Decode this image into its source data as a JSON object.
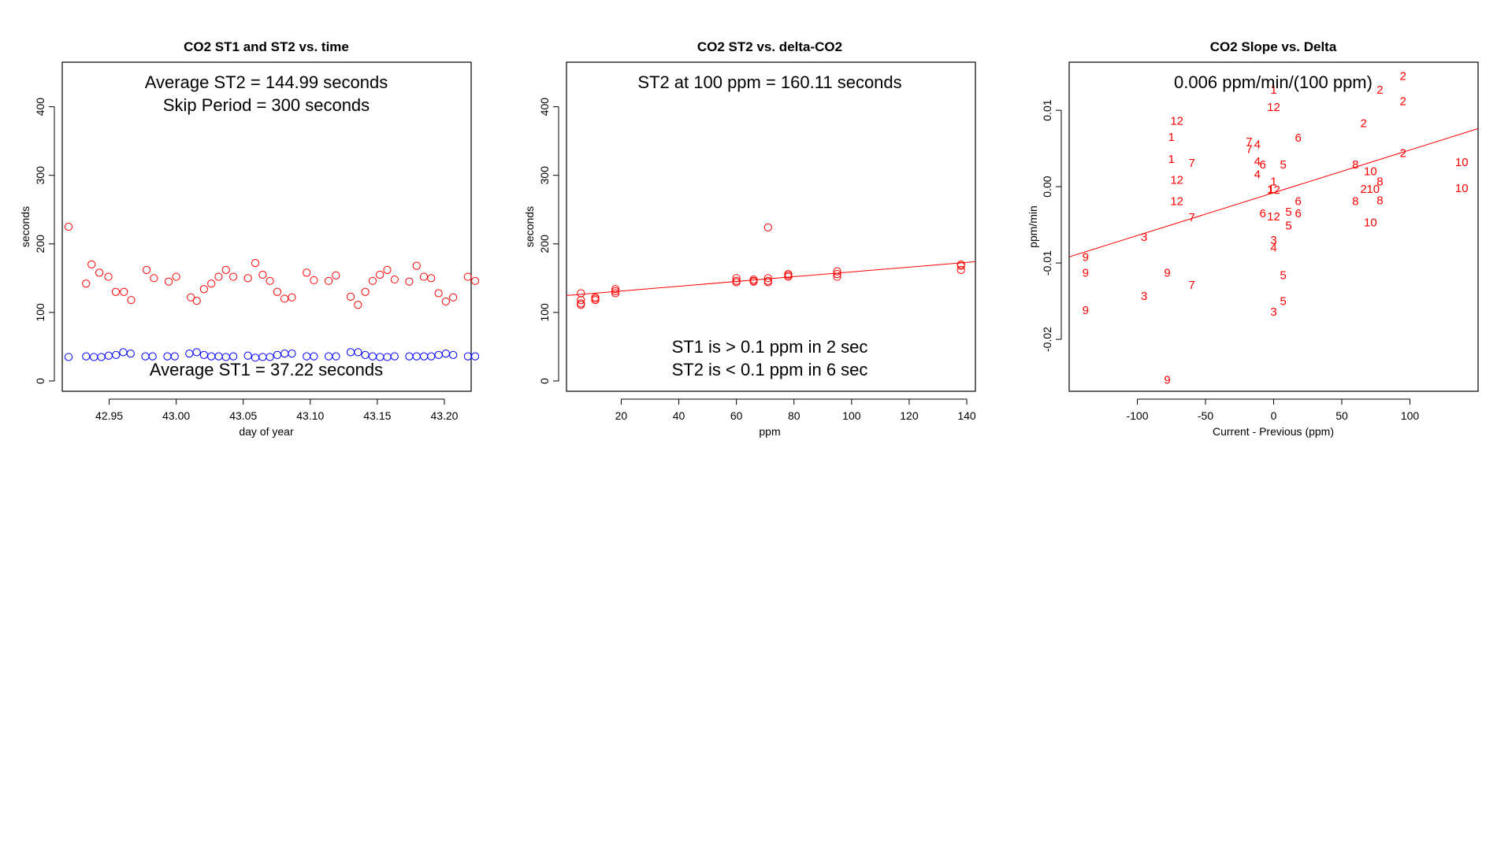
{
  "chart_data": [
    {
      "type": "scatter",
      "title": "CO2 ST1 and ST2 vs. time",
      "xlabel": "day of year",
      "ylabel": "seconds",
      "xlim": [
        42.915,
        43.22
      ],
      "ylim": [
        -15,
        465
      ],
      "x_ticks": [
        42.95,
        43.0,
        43.05,
        43.1,
        43.15,
        43.2
      ],
      "x_tick_labels": [
        "42.95",
        "43.00",
        "43.05",
        "43.10",
        "43.15",
        "43.20"
      ],
      "y_ticks": [
        0,
        100,
        200,
        300,
        400
      ],
      "y_tick_labels": [
        "0",
        "100",
        "200",
        "300",
        "400"
      ],
      "series": [
        {
          "name": "ST2",
          "color": "#ff0000",
          "marker": "circle",
          "points": [
            [
              42.9197,
              225
            ],
            [
              42.9328,
              142
            ],
            [
              42.9369,
              170
            ],
            [
              42.9427,
              158
            ],
            [
              42.9494,
              152
            ],
            [
              42.9549,
              130
            ],
            [
              42.961,
              130
            ],
            [
              42.9664,
              118
            ],
            [
              42.9779,
              162
            ],
            [
              42.9834,
              150
            ],
            [
              42.9944,
              145
            ],
            [
              43.0,
              152
            ],
            [
              43.0109,
              122
            ],
            [
              43.0153,
              117
            ],
            [
              43.0207,
              134
            ],
            [
              43.0262,
              142
            ],
            [
              43.0316,
              152
            ],
            [
              43.0371,
              162
            ],
            [
              43.0426,
              152
            ],
            [
              43.0535,
              150
            ],
            [
              43.059,
              172
            ],
            [
              43.0645,
              155
            ],
            [
              43.0699,
              146
            ],
            [
              43.0754,
              130
            ],
            [
              43.0808,
              120
            ],
            [
              43.0863,
              122
            ],
            [
              43.0973,
              158
            ],
            [
              43.1027,
              147
            ],
            [
              43.1137,
              146
            ],
            [
              43.1191,
              154
            ],
            [
              43.1301,
              123
            ],
            [
              43.1356,
              111
            ],
            [
              43.141,
              130
            ],
            [
              43.1465,
              146
            ],
            [
              43.1519,
              155
            ],
            [
              43.1574,
              162
            ],
            [
              43.1629,
              148
            ],
            [
              43.1738,
              145
            ],
            [
              43.1793,
              168
            ],
            [
              43.1847,
              152
            ],
            [
              43.1902,
              150
            ],
            [
              43.1957,
              128
            ],
            [
              43.2011,
              116
            ],
            [
              43.2066,
              122
            ],
            [
              43.2175,
              152
            ],
            [
              43.223,
              146
            ]
          ]
        },
        {
          "name": "ST1",
          "color": "#0000ff",
          "marker": "circle",
          "points": [
            [
              42.9197,
              35
            ],
            [
              42.9328,
              36
            ],
            [
              42.9386,
              35
            ],
            [
              42.9441,
              35
            ],
            [
              42.9496,
              37
            ],
            [
              42.9551,
              38
            ],
            [
              42.9605,
              42
            ],
            [
              42.966,
              40
            ],
            [
              42.977,
              36
            ],
            [
              42.9824,
              36
            ],
            [
              42.9934,
              36
            ],
            [
              42.9989,
              36
            ],
            [
              43.0098,
              40
            ],
            [
              43.0153,
              42
            ],
            [
              43.0207,
              38
            ],
            [
              43.0262,
              36
            ],
            [
              43.0317,
              36
            ],
            [
              43.0371,
              35
            ],
            [
              43.0426,
              36
            ],
            [
              43.0535,
              37
            ],
            [
              43.059,
              34
            ],
            [
              43.0645,
              35
            ],
            [
              43.0699,
              35
            ],
            [
              43.0754,
              38
            ],
            [
              43.0809,
              40
            ],
            [
              43.0863,
              40
            ],
            [
              43.0973,
              36
            ],
            [
              43.1027,
              36
            ],
            [
              43.1137,
              36
            ],
            [
              43.1192,
              36
            ],
            [
              43.1301,
              42
            ],
            [
              43.1356,
              42
            ],
            [
              43.141,
              38
            ],
            [
              43.1465,
              36
            ],
            [
              43.152,
              35
            ],
            [
              43.1574,
              35
            ],
            [
              43.1629,
              36
            ],
            [
              43.1738,
              36
            ],
            [
              43.1793,
              36
            ],
            [
              43.1848,
              36
            ],
            [
              43.1902,
              36
            ],
            [
              43.1957,
              38
            ],
            [
              43.2011,
              40
            ],
            [
              43.2066,
              38
            ],
            [
              43.2176,
              36
            ],
            [
              43.223,
              36
            ]
          ]
        }
      ],
      "annotations": [
        "Average ST2 =  144.99  seconds",
        "Skip Period =  300  seconds",
        "Average ST1 =  37.22  seconds"
      ]
    },
    {
      "type": "scatter",
      "title": "CO2 ST2 vs. delta-CO2",
      "xlabel": "ppm",
      "ylabel": "seconds",
      "xlim": [
        1,
        143
      ],
      "ylim": [
        -15,
        465
      ],
      "x_ticks": [
        20,
        40,
        60,
        80,
        100,
        120,
        140
      ],
      "x_tick_labels": [
        "20",
        "40",
        "60",
        "80",
        "100",
        "120",
        "140"
      ],
      "y_ticks": [
        0,
        100,
        200,
        300,
        400
      ],
      "y_tick_labels": [
        "0",
        "100",
        "200",
        "300",
        "400"
      ],
      "series": [
        {
          "name": "ST2",
          "color": "#ff0000",
          "marker": "circle",
          "points": [
            [
              6,
              128
            ],
            [
              6,
              118
            ],
            [
              6,
              111
            ],
            [
              6,
              113
            ],
            [
              11,
              122
            ],
            [
              11,
              118
            ],
            [
              11,
              120
            ],
            [
              18,
              128
            ],
            [
              18,
              131
            ],
            [
              18,
              134
            ],
            [
              60,
              146
            ],
            [
              60,
              150
            ],
            [
              60,
              144
            ],
            [
              66,
              148
            ],
            [
              66,
              145
            ],
            [
              66,
              146
            ],
            [
              71,
              224
            ],
            [
              71,
              150
            ],
            [
              71,
              146
            ],
            [
              71,
              144
            ],
            [
              78,
              156
            ],
            [
              78,
              152
            ],
            [
              78,
              154
            ],
            [
              95,
              160
            ],
            [
              95,
              156
            ],
            [
              95,
              152
            ],
            [
              138,
              170
            ],
            [
              138,
              168
            ],
            [
              138,
              162
            ]
          ]
        }
      ],
      "fit_line": {
        "x": [
          1,
          143
        ],
        "y": [
          124.6,
          174.1
        ],
        "color": "#ff0000"
      },
      "annotations": [
        "ST2 at 100 ppm =  160.11  seconds",
        "ST1 is > 0.1 ppm in 2 sec",
        "ST2 is < 0.1 ppm in 6 sec"
      ]
    },
    {
      "type": "scatter",
      "title": "CO2 Slope vs. Delta",
      "xlabel": "Current - Previous (ppm)",
      "ylabel": "ppm/min",
      "xlim": [
        -150,
        150
      ],
      "ylim": [
        -0.0268,
        0.0163
      ],
      "x_ticks": [
        -100,
        -50,
        0,
        50,
        100
      ],
      "x_tick_labels": [
        "-100",
        "-50",
        "0",
        "50",
        "100"
      ],
      "y_ticks": [
        -0.02,
        -0.01,
        0.0,
        0.01
      ],
      "y_tick_labels": [
        "-0.02",
        "-0.01",
        "0.00",
        "0.01"
      ],
      "series": [
        {
          "name": "labeled points",
          "color": "#ff0000",
          "marker": "text",
          "points": [
            {
              "x": 95,
              "y": 0.0145,
              "label": "2"
            },
            {
              "x": 95,
              "y": 0.0112,
              "label": "2"
            },
            {
              "x": 78,
              "y": 0.0127,
              "label": "2"
            },
            {
              "x": 66,
              "y": 0.0083,
              "label": "2"
            },
            {
              "x": 95,
              "y": 0.0044,
              "label": "2"
            },
            {
              "x": 66,
              "y": -0.0003,
              "label": "2"
            },
            {
              "x": 138,
              "y": 0.0032,
              "label": "10"
            },
            {
              "x": 138,
              "y": -0.0002,
              "label": "10"
            },
            {
              "x": 71,
              "y": 0.002,
              "label": "10"
            },
            {
              "x": 73,
              "y": -0.0003,
              "label": "10"
            },
            {
              "x": 71,
              "y": -0.0047,
              "label": "10"
            },
            {
              "x": 60,
              "y": 0.0029,
              "label": "8"
            },
            {
              "x": 78,
              "y": 0.0007,
              "label": "8"
            },
            {
              "x": 60,
              "y": -0.0019,
              "label": "8"
            },
            {
              "x": 78,
              "y": -0.0018,
              "label": "8"
            },
            {
              "x": 0,
              "y": 0.0127,
              "label": "1"
            },
            {
              "x": -75,
              "y": 0.0065,
              "label": "1"
            },
            {
              "x": -75,
              "y": 0.0036,
              "label": "1"
            },
            {
              "x": 0,
              "y": 0.0007,
              "label": "1"
            },
            {
              "x": -2,
              "y": -0.0003,
              "label": "1"
            },
            {
              "x": 0,
              "y": 0.0104,
              "label": "12"
            },
            {
              "x": -71,
              "y": 0.0086,
              "label": "12"
            },
            {
              "x": -71,
              "y": 0.0009,
              "label": "12"
            },
            {
              "x": -71,
              "y": -0.0019,
              "label": "12"
            },
            {
              "x": 0,
              "y": -0.0004,
              "label": "12"
            },
            {
              "x": 0,
              "y": -0.0039,
              "label": "12"
            },
            {
              "x": -18,
              "y": 0.0059,
              "label": "7"
            },
            {
              "x": -18,
              "y": 0.0049,
              "label": "7"
            },
            {
              "x": -60,
              "y": 0.0031,
              "label": "7"
            },
            {
              "x": -60,
              "y": -0.004,
              "label": "7"
            },
            {
              "x": -60,
              "y": -0.0129,
              "label": "7"
            },
            {
              "x": -12,
              "y": 0.0055,
              "label": "4"
            },
            {
              "x": -12,
              "y": 0.0033,
              "label": "4"
            },
            {
              "x": -12,
              "y": 0.0016,
              "label": "4"
            },
            {
              "x": 0,
              "y": -0.008,
              "label": "4"
            },
            {
              "x": 18,
              "y": 0.0064,
              "label": "6"
            },
            {
              "x": -8,
              "y": 0.0029,
              "label": "6"
            },
            {
              "x": 18,
              "y": -0.0019,
              "label": "6"
            },
            {
              "x": -8,
              "y": -0.0035,
              "label": "6"
            },
            {
              "x": 18,
              "y": -0.0035,
              "label": "6"
            },
            {
              "x": 7,
              "y": 0.0029,
              "label": "5"
            },
            {
              "x": 11,
              "y": -0.0033,
              "label": "5"
            },
            {
              "x": 11,
              "y": -0.0051,
              "label": "5"
            },
            {
              "x": 7,
              "y": -0.0116,
              "label": "5"
            },
            {
              "x": 7,
              "y": -0.015,
              "label": "5"
            },
            {
              "x": 0,
              "y": -0.007,
              "label": "3"
            },
            {
              "x": -95,
              "y": -0.0066,
              "label": "3"
            },
            {
              "x": -95,
              "y": -0.0143,
              "label": "3"
            },
            {
              "x": 0,
              "y": -0.0164,
              "label": "3"
            },
            {
              "x": -138,
              "y": -0.0092,
              "label": "9"
            },
            {
              "x": -138,
              "y": -0.0113,
              "label": "9"
            },
            {
              "x": -78,
              "y": -0.0113,
              "label": "9"
            },
            {
              "x": -138,
              "y": -0.0162,
              "label": "9"
            },
            {
              "x": -78,
              "y": -0.0253,
              "label": "9"
            }
          ]
        }
      ],
      "fit_line": {
        "x": [
          -150,
          150
        ],
        "y": [
          -0.0092,
          0.0076
        ],
        "color": "#ff0000"
      },
      "annotations": [
        "0.006  ppm/min/(100 ppm)"
      ]
    }
  ]
}
